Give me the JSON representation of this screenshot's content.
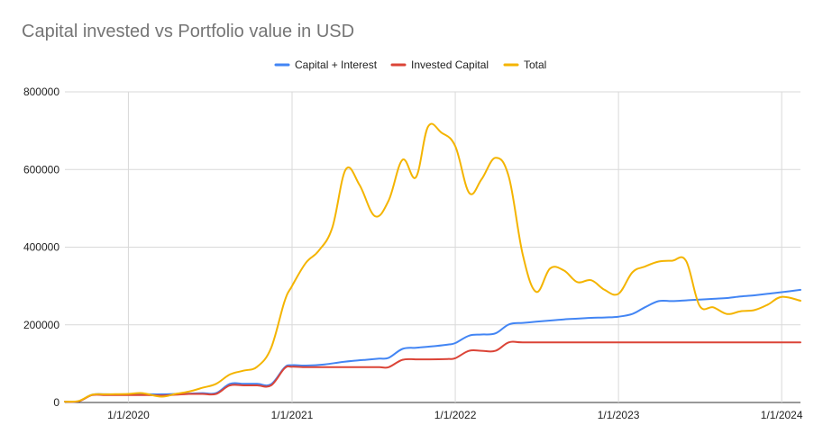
{
  "chart_data": {
    "type": "line",
    "title": "Capital invested vs Portfolio value in USD",
    "xlabel": "",
    "ylabel": "",
    "x_range": [
      "2019-08-12",
      "2024-02-12"
    ],
    "ylim": [
      0,
      800000
    ],
    "y_ticks": [
      0,
      200000,
      400000,
      600000,
      800000
    ],
    "y_tick_labels": [
      "0",
      "200000",
      "400000",
      "600000",
      "800000"
    ],
    "x_ticks": [
      "2020-01-01",
      "2021-01-01",
      "2022-01-01",
      "2023-01-01",
      "2024-01-01"
    ],
    "x_tick_labels": [
      "1/1/2020",
      "1/1/2021",
      "1/1/2022",
      "1/1/2023",
      "1/1/2024"
    ],
    "grid": "vertical and horizontal",
    "legend_position": "top",
    "series": [
      {
        "name": "Capital + Interest",
        "color": "#4285f4",
        "points": [
          [
            "2019-08-12",
            2000
          ],
          [
            "2019-09-12",
            3000
          ],
          [
            "2019-10-12",
            20000
          ],
          [
            "2019-11-12",
            21000
          ],
          [
            "2020-01-01",
            20000
          ],
          [
            "2020-02-12",
            21000
          ],
          [
            "2020-03-15",
            21000
          ],
          [
            "2020-04-15",
            22000
          ],
          [
            "2020-05-15",
            23000
          ],
          [
            "2020-06-15",
            24000
          ],
          [
            "2020-07-15",
            24000
          ],
          [
            "2020-08-15",
            48000
          ],
          [
            "2020-09-15",
            48000
          ],
          [
            "2020-10-15",
            48000
          ],
          [
            "2020-11-15",
            47000
          ],
          [
            "2020-12-15",
            90000
          ],
          [
            "2021-01-01",
            96000
          ],
          [
            "2021-02-01",
            95000
          ],
          [
            "2021-03-15",
            98000
          ],
          [
            "2021-04-15",
            103000
          ],
          [
            "2021-05-15",
            107000
          ],
          [
            "2021-06-15",
            110000
          ],
          [
            "2021-07-15",
            113000
          ],
          [
            "2021-08-05",
            115000
          ],
          [
            "2021-09-05",
            138000
          ],
          [
            "2021-10-05",
            141000
          ],
          [
            "2021-11-05",
            144000
          ],
          [
            "2021-12-15",
            149000
          ],
          [
            "2022-01-01",
            153000
          ],
          [
            "2022-02-01",
            172000
          ],
          [
            "2022-03-01",
            175000
          ],
          [
            "2022-04-01",
            178000
          ],
          [
            "2022-05-01",
            201000
          ],
          [
            "2022-06-01",
            205000
          ],
          [
            "2022-07-01",
            208000
          ],
          [
            "2022-08-01",
            211000
          ],
          [
            "2022-09-01",
            214000
          ],
          [
            "2022-10-01",
            216000
          ],
          [
            "2022-11-01",
            218000
          ],
          [
            "2022-12-01",
            219000
          ],
          [
            "2023-01-01",
            221000
          ],
          [
            "2023-02-01",
            228000
          ],
          [
            "2023-03-01",
            245000
          ],
          [
            "2023-04-01",
            261000
          ],
          [
            "2023-05-01",
            261000
          ],
          [
            "2023-06-01",
            263000
          ],
          [
            "2023-07-01",
            265000
          ],
          [
            "2023-08-01",
            267000
          ],
          [
            "2023-09-01",
            269000
          ],
          [
            "2023-10-01",
            273000
          ],
          [
            "2023-11-01",
            276000
          ],
          [
            "2023-12-01",
            280000
          ],
          [
            "2024-01-01",
            284000
          ],
          [
            "2024-02-12",
            290000
          ]
        ]
      },
      {
        "name": "Invested Capital",
        "color": "#db4437",
        "points": [
          [
            "2019-08-12",
            2000
          ],
          [
            "2019-09-12",
            3000
          ],
          [
            "2019-10-12",
            19000
          ],
          [
            "2019-11-12",
            19000
          ],
          [
            "2020-01-01",
            19000
          ],
          [
            "2020-02-12",
            19000
          ],
          [
            "2020-03-15",
            18000
          ],
          [
            "2020-04-15",
            20000
          ],
          [
            "2020-05-15",
            22000
          ],
          [
            "2020-06-15",
            22000
          ],
          [
            "2020-07-15",
            22000
          ],
          [
            "2020-08-15",
            44000
          ],
          [
            "2020-09-15",
            44000
          ],
          [
            "2020-10-15",
            44000
          ],
          [
            "2020-11-15",
            44000
          ],
          [
            "2020-12-15",
            88000
          ],
          [
            "2021-01-01",
            92000
          ],
          [
            "2021-02-01",
            91000
          ],
          [
            "2021-03-15",
            91000
          ],
          [
            "2021-04-15",
            91000
          ],
          [
            "2021-05-15",
            91000
          ],
          [
            "2021-06-15",
            91000
          ],
          [
            "2021-07-15",
            91000
          ],
          [
            "2021-08-05",
            91000
          ],
          [
            "2021-09-05",
            110000
          ],
          [
            "2021-10-05",
            111000
          ],
          [
            "2021-11-05",
            111000
          ],
          [
            "2021-12-15",
            112000
          ],
          [
            "2022-01-01",
            114000
          ],
          [
            "2022-02-01",
            133000
          ],
          [
            "2022-03-01",
            133000
          ],
          [
            "2022-04-01",
            133000
          ],
          [
            "2022-05-01",
            155000
          ],
          [
            "2022-06-01",
            155000
          ],
          [
            "2022-09-01",
            155000
          ],
          [
            "2022-12-01",
            155000
          ],
          [
            "2023-03-01",
            155000
          ],
          [
            "2023-06-01",
            155000
          ],
          [
            "2023-09-01",
            155000
          ],
          [
            "2023-12-01",
            155000
          ],
          [
            "2024-02-12",
            155000
          ]
        ]
      },
      {
        "name": "Total",
        "color": "#f4b400",
        "points": [
          [
            "2019-08-12",
            2000
          ],
          [
            "2019-09-12",
            4000
          ],
          [
            "2019-10-12",
            20000
          ],
          [
            "2019-11-12",
            21000
          ],
          [
            "2020-01-01",
            22000
          ],
          [
            "2020-02-01",
            24000
          ],
          [
            "2020-03-15",
            15000
          ],
          [
            "2020-04-15",
            22000
          ],
          [
            "2020-05-15",
            28000
          ],
          [
            "2020-06-15",
            38000
          ],
          [
            "2020-07-15",
            48000
          ],
          [
            "2020-08-15",
            72000
          ],
          [
            "2020-09-15",
            82000
          ],
          [
            "2020-10-15",
            92000
          ],
          [
            "2020-11-15",
            140000
          ],
          [
            "2020-12-15",
            260000
          ],
          [
            "2021-01-01",
            300000
          ],
          [
            "2021-02-01",
            360000
          ],
          [
            "2021-03-01",
            390000
          ],
          [
            "2021-04-01",
            450000
          ],
          [
            "2021-05-01",
            600000
          ],
          [
            "2021-06-01",
            560000
          ],
          [
            "2021-07-05",
            480000
          ],
          [
            "2021-08-05",
            520000
          ],
          [
            "2021-09-05",
            625000
          ],
          [
            "2021-10-05",
            580000
          ],
          [
            "2021-11-01",
            710000
          ],
          [
            "2021-12-01",
            695000
          ],
          [
            "2022-01-01",
            660000
          ],
          [
            "2022-02-01",
            540000
          ],
          [
            "2022-03-01",
            575000
          ],
          [
            "2022-04-01",
            630000
          ],
          [
            "2022-05-01",
            580000
          ],
          [
            "2022-06-01",
            380000
          ],
          [
            "2022-07-01",
            285000
          ],
          [
            "2022-08-01",
            345000
          ],
          [
            "2022-09-01",
            340000
          ],
          [
            "2022-10-01",
            310000
          ],
          [
            "2022-11-01",
            315000
          ],
          [
            "2022-12-01",
            290000
          ],
          [
            "2023-01-01",
            280000
          ],
          [
            "2023-02-01",
            335000
          ],
          [
            "2023-03-01",
            350000
          ],
          [
            "2023-04-01",
            363000
          ],
          [
            "2023-05-01",
            365000
          ],
          [
            "2023-06-01",
            365000
          ],
          [
            "2023-07-01",
            250000
          ],
          [
            "2023-08-01",
            245000
          ],
          [
            "2023-09-01",
            228000
          ],
          [
            "2023-10-01",
            235000
          ],
          [
            "2023-11-01",
            238000
          ],
          [
            "2023-12-01",
            252000
          ],
          [
            "2024-01-01",
            272000
          ],
          [
            "2024-02-12",
            262000
          ]
        ]
      }
    ]
  }
}
